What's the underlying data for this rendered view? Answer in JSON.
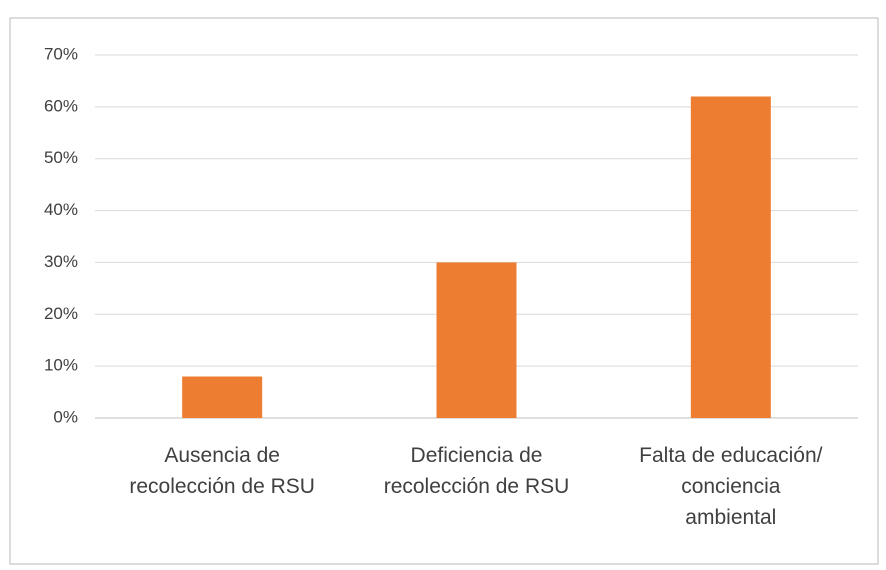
{
  "chart_data": {
    "type": "bar",
    "categories": [
      "Ausencia de\nrecolección de RSU",
      "Deficiencia de\nrecolección de RSU",
      "Falta de educación/\nconciencia\nambiental"
    ],
    "values": [
      8,
      30,
      62
    ],
    "color": "#ed7d31",
    "ylim": [
      0,
      70
    ],
    "yticks": [
      {
        "value": 0,
        "label": "0%"
      },
      {
        "value": 10,
        "label": "10%"
      },
      {
        "value": 20,
        "label": "20%"
      },
      {
        "value": 30,
        "label": "30%"
      },
      {
        "value": 40,
        "label": "40%"
      },
      {
        "value": 50,
        "label": "50%"
      },
      {
        "value": 60,
        "label": "60%"
      },
      {
        "value": 70,
        "label": "70%"
      }
    ],
    "grid": true
  }
}
